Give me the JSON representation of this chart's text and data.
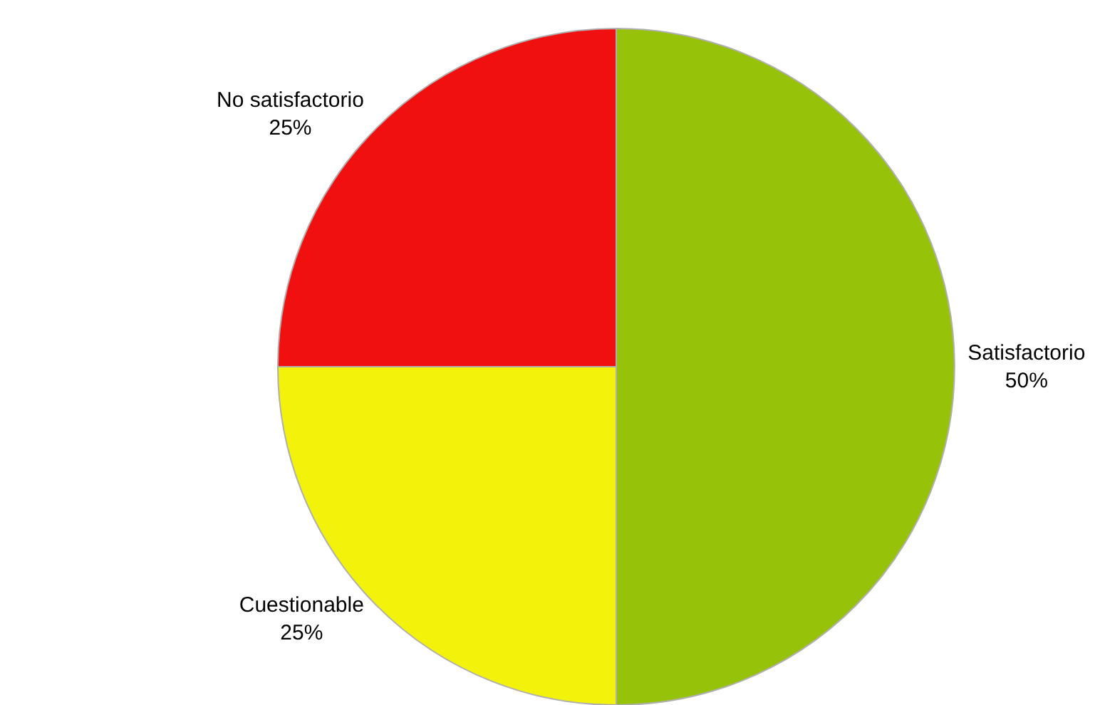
{
  "chart_data": {
    "type": "pie",
    "categories": [
      "Satisfactorio",
      "Cuestionable",
      "No satisfactorio"
    ],
    "values": [
      50,
      25,
      25
    ],
    "value_labels": [
      "50%",
      "25%",
      "25%"
    ],
    "colors": [
      "#97c20a",
      "#f2f20a",
      "#f01010"
    ],
    "legend": false
  }
}
